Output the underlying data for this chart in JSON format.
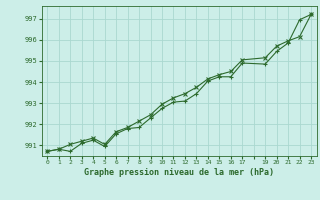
{
  "title": "Graphe pression niveau de la mer (hPa)",
  "background_color": "#cceee8",
  "grid_color": "#aad8d0",
  "line_color": "#2d6a2d",
  "xlim": [
    -0.5,
    23.5
  ],
  "ylim": [
    990.5,
    997.6
  ],
  "yticks": [
    991,
    992,
    993,
    994,
    995,
    996,
    997
  ],
  "xtick_labels": [
    "0",
    "1",
    "2",
    "3",
    "4",
    "5",
    "6",
    "7",
    "8",
    "9",
    "10",
    "11",
    "12",
    "13",
    "14",
    "15",
    "16",
    "17",
    "",
    "19",
    "20",
    "21",
    "22",
    "23"
  ],
  "line1_x": [
    0,
    1,
    2,
    3,
    4,
    5,
    6,
    7,
    8,
    9,
    10,
    11,
    12,
    13,
    14,
    15,
    16,
    17,
    19,
    20,
    21,
    22,
    23
  ],
  "line1_y": [
    990.72,
    990.82,
    990.72,
    991.1,
    991.25,
    990.95,
    991.55,
    991.8,
    991.85,
    992.3,
    992.75,
    993.05,
    993.1,
    993.45,
    994.05,
    994.25,
    994.25,
    994.9,
    994.85,
    995.45,
    995.85,
    996.95,
    997.2
  ],
  "line2_x": [
    0,
    1,
    2,
    3,
    4,
    5,
    6,
    7,
    8,
    9,
    10,
    11,
    12,
    13,
    14,
    15,
    16,
    17,
    19,
    20,
    21,
    22,
    23
  ],
  "line2_y": [
    990.72,
    990.82,
    991.05,
    991.2,
    991.35,
    991.05,
    991.65,
    991.85,
    992.15,
    992.45,
    992.95,
    993.25,
    993.45,
    993.75,
    994.15,
    994.35,
    994.5,
    995.05,
    995.15,
    995.7,
    995.95,
    996.15,
    997.2
  ]
}
